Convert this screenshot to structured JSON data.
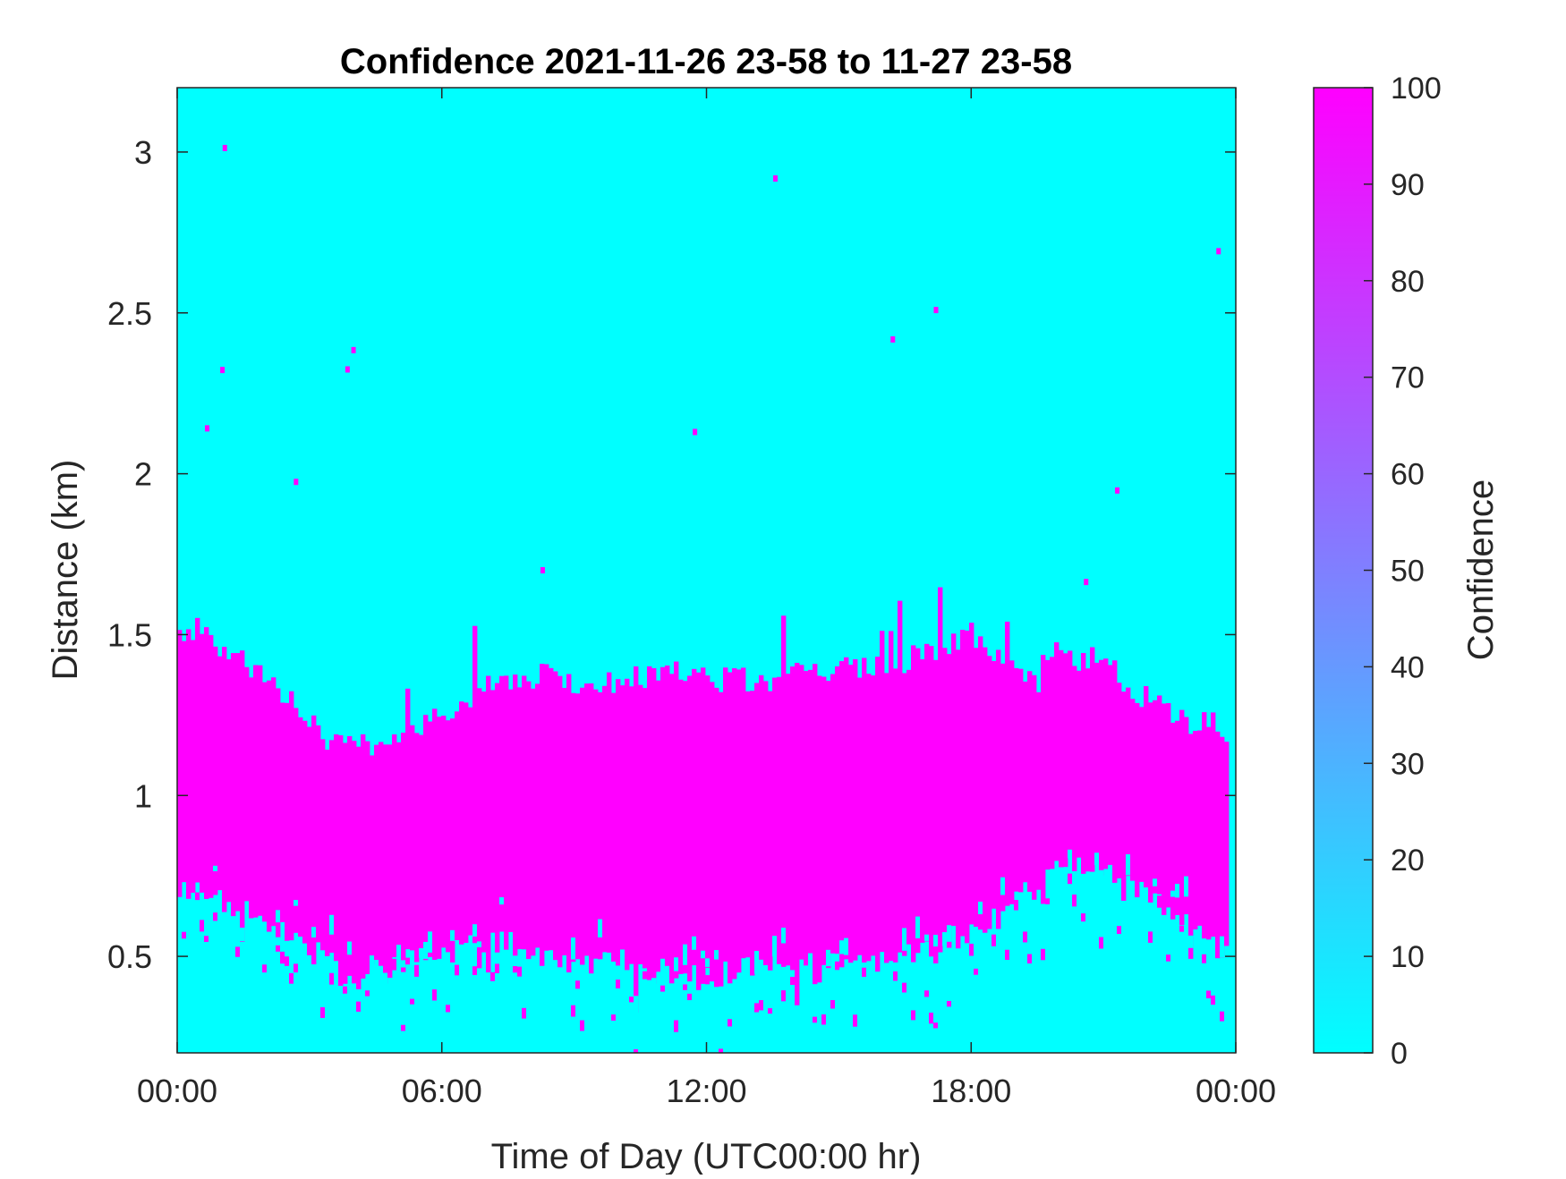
{
  "chart_data": {
    "type": "heatmap",
    "title": "Confidence 2021-11-26 23-58 to 11-27 23-58",
    "xlabel": "Time of Day (UTC00:00 hr)",
    "ylabel": "Distance (km)",
    "xlim": [
      0,
      24
    ],
    "ylim": [
      0.2,
      3.2
    ],
    "x_ticks": [
      0,
      6,
      12,
      18,
      24
    ],
    "x_tick_labels": [
      "00:00",
      "06:00",
      "12:00",
      "18:00",
      "00:00"
    ],
    "y_ticks": [
      0.5,
      1,
      1.5,
      2,
      2.5,
      3
    ],
    "y_tick_labels": [
      "0.5",
      "1",
      "1.5",
      "2",
      "2.5",
      "3"
    ],
    "grid": false,
    "colorbar": {
      "label": "Confidence",
      "min": 0,
      "max": 100,
      "ticks": [
        0,
        10,
        20,
        30,
        40,
        50,
        60,
        70,
        80,
        90,
        100
      ],
      "tick_labels": [
        "0",
        "10",
        "20",
        "30",
        "40",
        "50",
        "60",
        "70",
        "80",
        "90",
        "100"
      ],
      "colormap": "cool",
      "low_color": "#00ffff",
      "high_color": "#ff00ff"
    },
    "values_note": "Cells take value 0 (background) or 100 (high-confidence layer).",
    "background_value": 0,
    "layer_value": 100,
    "layer_profile": {
      "hours": [
        0,
        0.5,
        1,
        1.5,
        2,
        2.5,
        3,
        3.5,
        4,
        4.5,
        5,
        5.5,
        6,
        6.5,
        7,
        7.5,
        8,
        8.5,
        9,
        9.5,
        10,
        10.5,
        11,
        11.5,
        12,
        12.5,
        13,
        13.5,
        14,
        14.5,
        15,
        15.5,
        16,
        16.5,
        17,
        17.5,
        18,
        18.5,
        19,
        19.5,
        20,
        20.5,
        21,
        21.5,
        22,
        22.5,
        23,
        23.5,
        23.9
      ],
      "top_km": [
        1.5,
        1.52,
        1.45,
        1.42,
        1.38,
        1.3,
        1.22,
        1.17,
        1.16,
        1.15,
        1.17,
        1.22,
        1.25,
        1.3,
        1.34,
        1.35,
        1.37,
        1.38,
        1.35,
        1.34,
        1.36,
        1.37,
        1.38,
        1.38,
        1.36,
        1.36,
        1.36,
        1.36,
        1.38,
        1.38,
        1.4,
        1.4,
        1.42,
        1.42,
        1.45,
        1.47,
        1.5,
        1.45,
        1.38,
        1.35,
        1.45,
        1.4,
        1.45,
        1.35,
        1.3,
        1.25,
        1.23,
        1.22,
        1.2
      ],
      "bottom_km": [
        0.7,
        0.7,
        0.68,
        0.65,
        0.6,
        0.58,
        0.52,
        0.48,
        0.43,
        0.45,
        0.48,
        0.5,
        0.5,
        0.52,
        0.55,
        0.55,
        0.52,
        0.5,
        0.48,
        0.48,
        0.48,
        0.46,
        0.44,
        0.44,
        0.43,
        0.45,
        0.48,
        0.48,
        0.46,
        0.45,
        0.48,
        0.5,
        0.5,
        0.5,
        0.52,
        0.55,
        0.58,
        0.62,
        0.68,
        0.72,
        0.78,
        0.8,
        0.75,
        0.72,
        0.7,
        0.65,
        0.6,
        0.55,
        0.5
      ]
    }
  }
}
